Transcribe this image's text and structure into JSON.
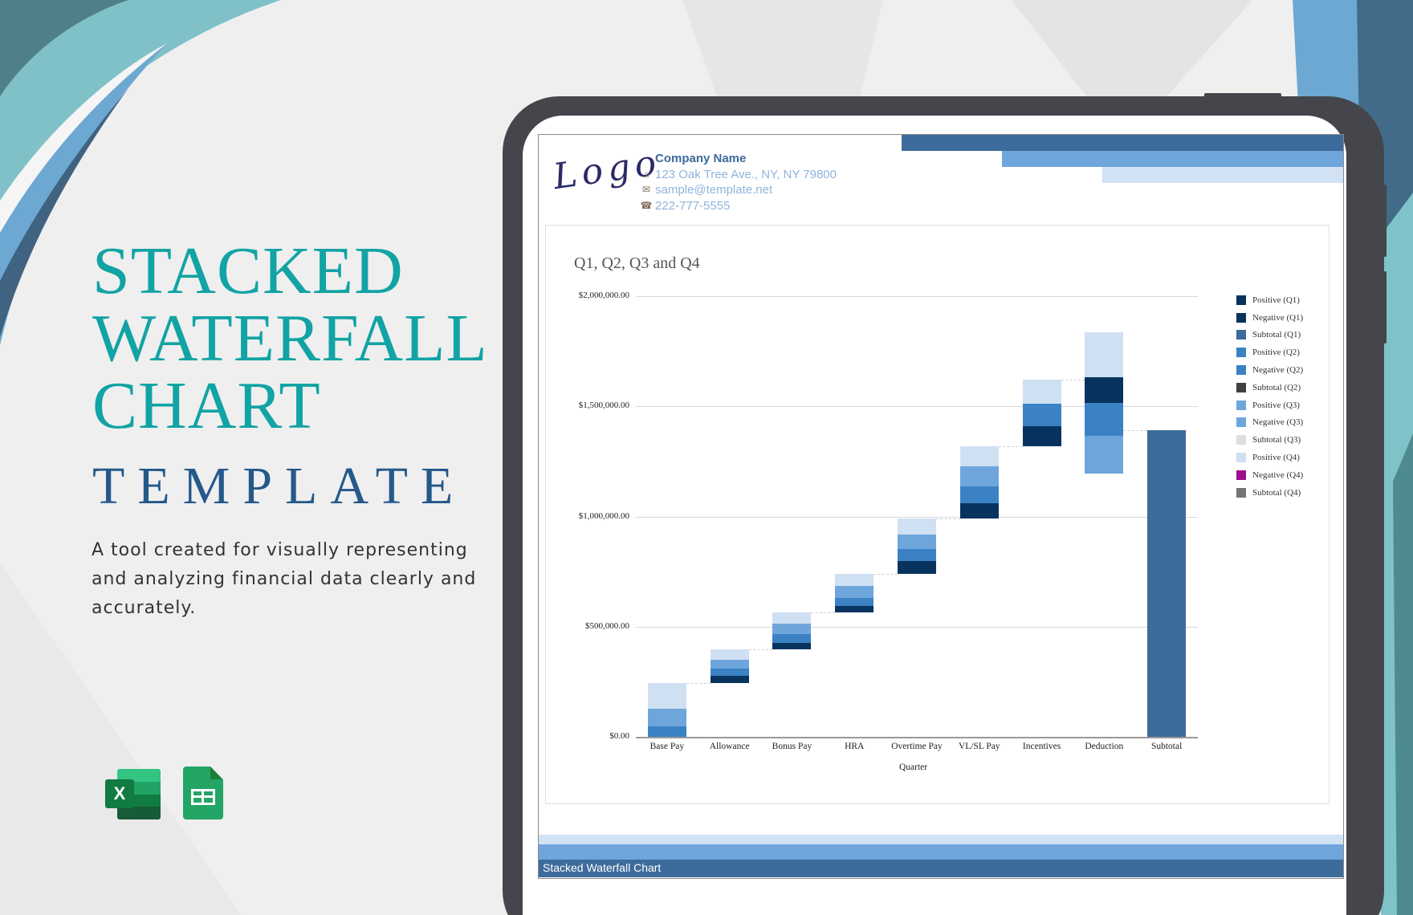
{
  "hero": {
    "title_lines": [
      "STACKED",
      "WATERFALL",
      "CHART"
    ],
    "subtitle": "TEMPLATE",
    "description": "A tool created for visually representing and analyzing financial data clearly and accurately."
  },
  "app_icons": [
    {
      "name": "excel-icon",
      "label": "X"
    },
    {
      "name": "google-sheets-icon"
    }
  ],
  "document": {
    "logo_text": "Logo",
    "company": {
      "name": "Company Name",
      "address": "123 Oak Tree Ave., NY, NY 79800",
      "email": "sample@template.net",
      "phone": "222-777-5555"
    },
    "header_colors": [
      "#3d6b9b",
      "#6ea6db",
      "#d0e2f4"
    ],
    "footer_title": "Stacked Waterfall Chart"
  },
  "colors": {
    "teal_title": "#12a3a4",
    "navy_subtitle": "#24598a",
    "q1": "#08335f",
    "subtotal_q1": "#3d6b9b",
    "q2": "#3b82c4",
    "subtotal_q2": "#404040",
    "q3": "#6ea6db",
    "subtotal_q3": "#dddddd",
    "q4": "#cfe0f3",
    "negative_q4": "#9b0f8e",
    "subtotal_q4": "#757575"
  },
  "chart_data": {
    "type": "bar",
    "subtype": "stacked-waterfall",
    "title": "Q1, Q2, Q3 and Q4",
    "xlabel": "Quarter",
    "ylabel": "",
    "ylim": [
      0,
      2000000
    ],
    "yticks": [
      "$0.00",
      "$500,000.00",
      "$1,000,000.00",
      "$1,500,000.00",
      "$2,000,000.00"
    ],
    "grid": true,
    "legend_position": "right",
    "legend": [
      {
        "label": "Positive (Q1)",
        "color": "#08335f"
      },
      {
        "label": "Negative (Q1)",
        "color": "#08335f"
      },
      {
        "label": "Subtotal (Q1)",
        "color": "#3d6b9b"
      },
      {
        "label": "Positive (Q2)",
        "color": "#3b82c4"
      },
      {
        "label": "Negative (Q2)",
        "color": "#3b82c4"
      },
      {
        "label": "Subtotal (Q2)",
        "color": "#404040"
      },
      {
        "label": "Positive (Q3)",
        "color": "#6ea6db"
      },
      {
        "label": "Negative (Q3)",
        "color": "#6ea6db"
      },
      {
        "label": "Subtotal (Q3)",
        "color": "#dddddd"
      },
      {
        "label": "Positive (Q4)",
        "color": "#cfe0f3"
      },
      {
        "label": "Negative (Q4)",
        "color": "#9b0f8e"
      },
      {
        "label": "Subtotal (Q4)",
        "color": "#757575"
      }
    ],
    "categories": [
      "Base Pay",
      "Allowance",
      "Bonus Pay",
      "HRA",
      "Overtime Pay",
      "VL/SL Pay",
      "Incentives",
      "Deduction",
      "Subtotal"
    ],
    "bars": [
      {
        "category": "Base Pay",
        "base": 0,
        "segments": [
          {
            "q": "Q1",
            "value": 0
          },
          {
            "q": "Q2",
            "value": 47000
          },
          {
            "q": "Q3",
            "value": 80000
          },
          {
            "q": "Q4",
            "value": 117000
          }
        ]
      },
      {
        "category": "Allowance",
        "base": 244000,
        "segments": [
          {
            "q": "Q1",
            "value": 33000
          },
          {
            "q": "Q2",
            "value": 33000
          },
          {
            "q": "Q3",
            "value": 40000
          },
          {
            "q": "Q4",
            "value": 47000
          }
        ]
      },
      {
        "category": "Bonus Pay",
        "base": 397000,
        "segments": [
          {
            "q": "Q1",
            "value": 29000
          },
          {
            "q": "Q2",
            "value": 40000
          },
          {
            "q": "Q3",
            "value": 47000
          },
          {
            "q": "Q4",
            "value": 51000
          }
        ]
      },
      {
        "category": "HRA",
        "base": 564000,
        "segments": [
          {
            "q": "Q1",
            "value": 29000
          },
          {
            "q": "Q2",
            "value": 36000
          },
          {
            "q": "Q3",
            "value": 55000
          },
          {
            "q": "Q4",
            "value": 55000
          }
        ]
      },
      {
        "category": "Overtime Pay",
        "base": 739000,
        "segments": [
          {
            "q": "Q1",
            "value": 58000
          },
          {
            "q": "Q2",
            "value": 55000
          },
          {
            "q": "Q3",
            "value": 66000
          },
          {
            "q": "Q4",
            "value": 73000
          }
        ]
      },
      {
        "category": "VL/SL Pay",
        "base": 991000,
        "segments": [
          {
            "q": "Q1",
            "value": 69000
          },
          {
            "q": "Q2",
            "value": 77000
          },
          {
            "q": "Q3",
            "value": 91000
          },
          {
            "q": "Q4",
            "value": 91000
          }
        ]
      },
      {
        "category": "Incentives",
        "base": 1319000,
        "segments": [
          {
            "q": "Q1",
            "value": 91000
          },
          {
            "q": "Q2",
            "value": 102000
          },
          {
            "q": "Q3",
            "value": 0
          },
          {
            "q": "Q4",
            "value": 109000
          }
        ]
      },
      {
        "category": "Deduction",
        "base": 1195000,
        "segments": [
          {
            "q": "Q3",
            "value": 171000
          },
          {
            "q": "Q2",
            "value": 149000
          },
          {
            "q": "Q1",
            "value": 117000
          },
          {
            "q": "Q4",
            "value": 204000
          }
        ]
      },
      {
        "category": "Subtotal",
        "base": 0,
        "segments": [
          {
            "q": "Subtotal",
            "value": 1392000
          }
        ]
      }
    ]
  }
}
